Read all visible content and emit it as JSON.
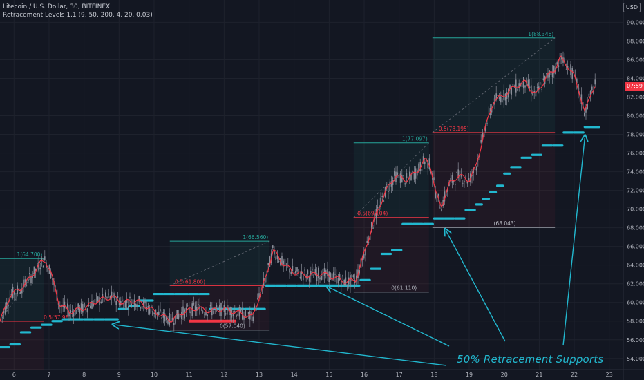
{
  "header": {
    "symbol_line": "Litecoin / U.S. Dollar, 30, BITFINEX",
    "indicator_line": "Retracement Levels 1.1 (9, 50, 200, 4, 20, 0.03)"
  },
  "price_axis": {
    "currency": "USD",
    "current_price_label": "07:59"
  },
  "annotation": {
    "text": "50% Retracement Supports"
  },
  "colors": {
    "background": "#131722",
    "candles": "#8a8e99",
    "moving_average": "#f23645",
    "support_line": "#22b8cf",
    "top_level": "#26a69a",
    "mid_level": "#f23645",
    "bottom_level": "#b2b5be",
    "annotation": "#22b8cf"
  },
  "chart_data": {
    "type": "line",
    "title": "Litecoin / U.S. Dollar, 30, BITFINEX",
    "y_axis": {
      "ticks": [
        54,
        56,
        58,
        60,
        62,
        64,
        66,
        68,
        70,
        72,
        74,
        76,
        78,
        80,
        82,
        84,
        86,
        88,
        90
      ],
      "tick_labels": [
        "54.000",
        "56.000",
        "58.000",
        "60.000",
        "62.000",
        "64.000",
        "66.000",
        "68.000",
        "70.000",
        "72.000",
        "74.000",
        "76.000",
        "78.000",
        "80.000",
        "82.000",
        "84.000",
        "86.000",
        "88.000",
        "90.000"
      ],
      "range": [
        52.8,
        92.4
      ]
    },
    "x_axis": {
      "ticks": [
        6,
        7,
        8,
        9,
        10,
        11,
        12,
        13,
        14,
        15,
        16,
        17,
        18,
        19,
        20,
        21,
        22,
        23
      ],
      "range": [
        5.6,
        23.4
      ]
    },
    "grid": true,
    "series": [
      {
        "name": "",
        "kind": "price",
        "x": [
          5.6,
          5.9,
          6.2,
          6.5,
          6.75,
          6.9,
          7.05,
          7.3,
          7.6,
          8.0,
          8.4,
          8.8,
          9.1,
          9.5,
          9.9,
          10.2,
          10.5,
          10.8,
          11.2,
          11.6,
          12.0,
          12.4,
          12.8,
          13.0,
          13.2,
          13.4,
          13.7,
          14.0,
          14.4,
          14.8,
          15.2,
          15.5,
          15.75,
          15.9,
          16.1,
          16.3,
          16.6,
          16.9,
          17.2,
          17.5,
          17.75,
          17.9,
          18.05,
          18.2,
          18.45,
          18.7,
          19.0,
          19.2,
          19.45,
          19.7,
          20.0,
          20.3,
          20.6,
          20.9,
          21.2,
          21.45,
          21.6,
          21.8,
          22.0,
          22.15,
          22.3,
          22.5,
          22.6
        ],
        "values": [
          58.0,
          60.8,
          61.5,
          62.8,
          64.2,
          64.5,
          63.2,
          59.8,
          59.0,
          59.4,
          60.2,
          60.6,
          60.0,
          60.2,
          59.3,
          58.6,
          58.1,
          58.9,
          59.4,
          59.1,
          59.3,
          58.9,
          58.4,
          60.5,
          62.8,
          65.6,
          64.1,
          63.2,
          62.9,
          63.1,
          62.6,
          62.2,
          62.4,
          64.0,
          66.5,
          69.0,
          71.8,
          73.6,
          73.1,
          74.0,
          75.3,
          74.6,
          71.6,
          70.3,
          72.8,
          73.6,
          73.1,
          74.6,
          78.6,
          81.6,
          82.2,
          83.1,
          83.6,
          82.2,
          84.1,
          85.0,
          86.2,
          85.4,
          84.2,
          82.5,
          80.3,
          82.7,
          83.2
        ]
      },
      {
        "name": "",
        "kind": "support",
        "x": [
          5.6,
          5.9,
          6.2,
          6.5,
          6.8,
          7.1,
          7.4,
          7.7,
          8.0,
          8.3,
          8.6,
          9.0,
          9.3,
          9.6,
          10.0,
          10.3,
          10.6,
          11.0,
          11.3,
          11.6,
          12.0,
          12.3,
          12.6,
          12.9,
          13.2,
          13.5,
          13.8,
          14.1,
          14.4,
          14.7,
          15.0,
          15.3,
          15.6,
          15.9,
          16.2,
          16.5,
          16.8,
          17.1,
          17.4,
          17.7,
          18.0,
          18.3,
          18.6,
          18.9,
          19.2,
          19.4,
          19.6,
          19.8,
          20.0,
          20.2,
          20.5,
          20.8,
          21.1,
          21.4,
          21.7,
          22.0,
          22.3,
          22.5
        ],
        "values": [
          55.2,
          55.5,
          56.8,
          57.3,
          57.6,
          58.0,
          58.2,
          58.2,
          58.2,
          58.2,
          58.2,
          59.3,
          59.6,
          60.2,
          60.9,
          60.9,
          60.9,
          60.9,
          60.9,
          59.3,
          59.3,
          59.3,
          59.3,
          59.3,
          61.8,
          61.8,
          61.8,
          61.8,
          61.8,
          61.8,
          61.8,
          61.8,
          61.8,
          62.4,
          63.6,
          65.2,
          65.6,
          68.4,
          68.4,
          68.4,
          69.0,
          69.0,
          69.0,
          69.9,
          70.5,
          71.1,
          71.8,
          72.5,
          73.8,
          74.5,
          75.5,
          75.8,
          76.8,
          76.8,
          78.2,
          78.2,
          78.8,
          78.8
        ]
      }
    ],
    "retracement_levels": [
      {
        "one_label": "1(64.700)",
        "one": 64.7,
        "half_label": "0.5(57.98)",
        "half": 57.98
      },
      {
        "one_label": "1(66.560)",
        "one": 66.56,
        "half_label": "0.5(61.800)",
        "half": 61.8,
        "zero_label": "0(57.040)",
        "zero": 57.04
      },
      {
        "one_label": "1(77.097)",
        "one": 77.097,
        "half_label": "0.5(69.104)",
        "half": 69.104,
        "zero_label": "0(61.110)",
        "zero": 61.11
      },
      {
        "one_label": "1(88.346)",
        "one": 88.346,
        "half_label": "0.5(78.195)",
        "half": 78.195,
        "zero_label": "(68.043)",
        "zero": 68.043
      }
    ]
  }
}
